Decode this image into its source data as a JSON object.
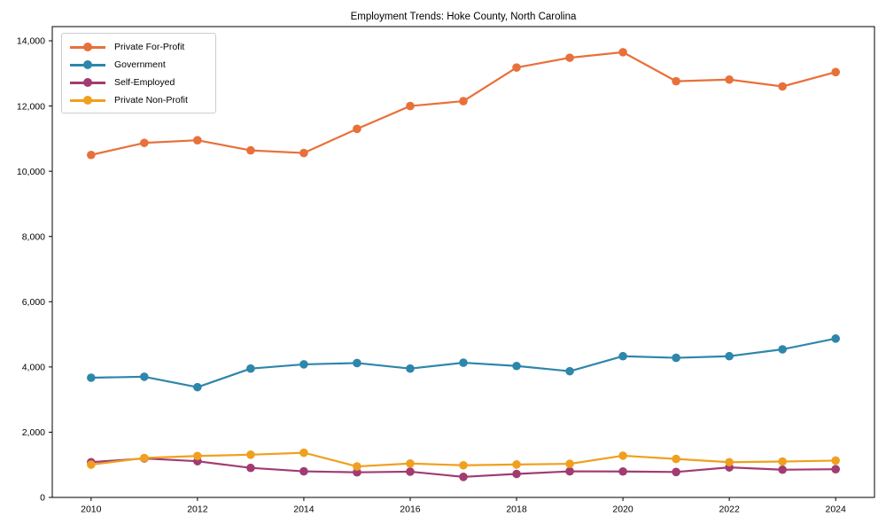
{
  "title": "Employment Trends: Hoke County, North Carolina",
  "chart_data": {
    "type": "line",
    "title": "Employment Trends: Hoke County, North Carolina",
    "xlabel": "",
    "ylabel": "",
    "grid": false,
    "legend_position": "upper-left",
    "xlim": [
      2009.27,
      2024.73
    ],
    "ylim": [
      0,
      14435
    ],
    "x": [
      2010,
      2011,
      2012,
      2013,
      2014,
      2015,
      2016,
      2017,
      2018,
      2019,
      2020,
      2021,
      2022,
      2023,
      2024
    ],
    "x_ticks": [
      {
        "value": 2010,
        "label": "2010"
      },
      {
        "value": 2012,
        "label": "2012"
      },
      {
        "value": 2014,
        "label": "2014"
      },
      {
        "value": 2016,
        "label": "2016"
      },
      {
        "value": 2018,
        "label": "2018"
      },
      {
        "value": 2020,
        "label": "2020"
      },
      {
        "value": 2022,
        "label": "2022"
      },
      {
        "value": 2024,
        "label": "2024"
      }
    ],
    "y_ticks": [
      {
        "value": 0,
        "label": "0"
      },
      {
        "value": 2000,
        "label": "2,000"
      },
      {
        "value": 4000,
        "label": "4,000"
      },
      {
        "value": 6000,
        "label": "6,000"
      },
      {
        "value": 8000,
        "label": "8,000"
      },
      {
        "value": 10000,
        "label": "10,000"
      },
      {
        "value": 12000,
        "label": "12,000"
      },
      {
        "value": 14000,
        "label": "14,000"
      }
    ],
    "series": [
      {
        "name": "Private For-Profit",
        "color": "#E8703A",
        "values": [
          10500,
          10870,
          10950,
          10640,
          10560,
          11300,
          12000,
          12150,
          13180,
          13480,
          13650,
          12760,
          12810,
          12600,
          13040
        ]
      },
      {
        "name": "Government",
        "color": "#2E86AB",
        "values": [
          3670,
          3700,
          3380,
          3950,
          4080,
          4120,
          3950,
          4130,
          4030,
          3870,
          4330,
          4280,
          4330,
          4540,
          4870
        ]
      },
      {
        "name": "Self-Employed",
        "color": "#A23B72",
        "values": [
          1080,
          1195,
          1110,
          905,
          800,
          770,
          790,
          630,
          720,
          800,
          795,
          780,
          920,
          850,
          865
        ]
      },
      {
        "name": "Private Non-Profit",
        "color": "#F0A01E",
        "values": [
          1005,
          1210,
          1270,
          1310,
          1370,
          950,
          1040,
          985,
          1010,
          1030,
          1280,
          1180,
          1080,
          1100,
          1130
        ]
      }
    ]
  }
}
